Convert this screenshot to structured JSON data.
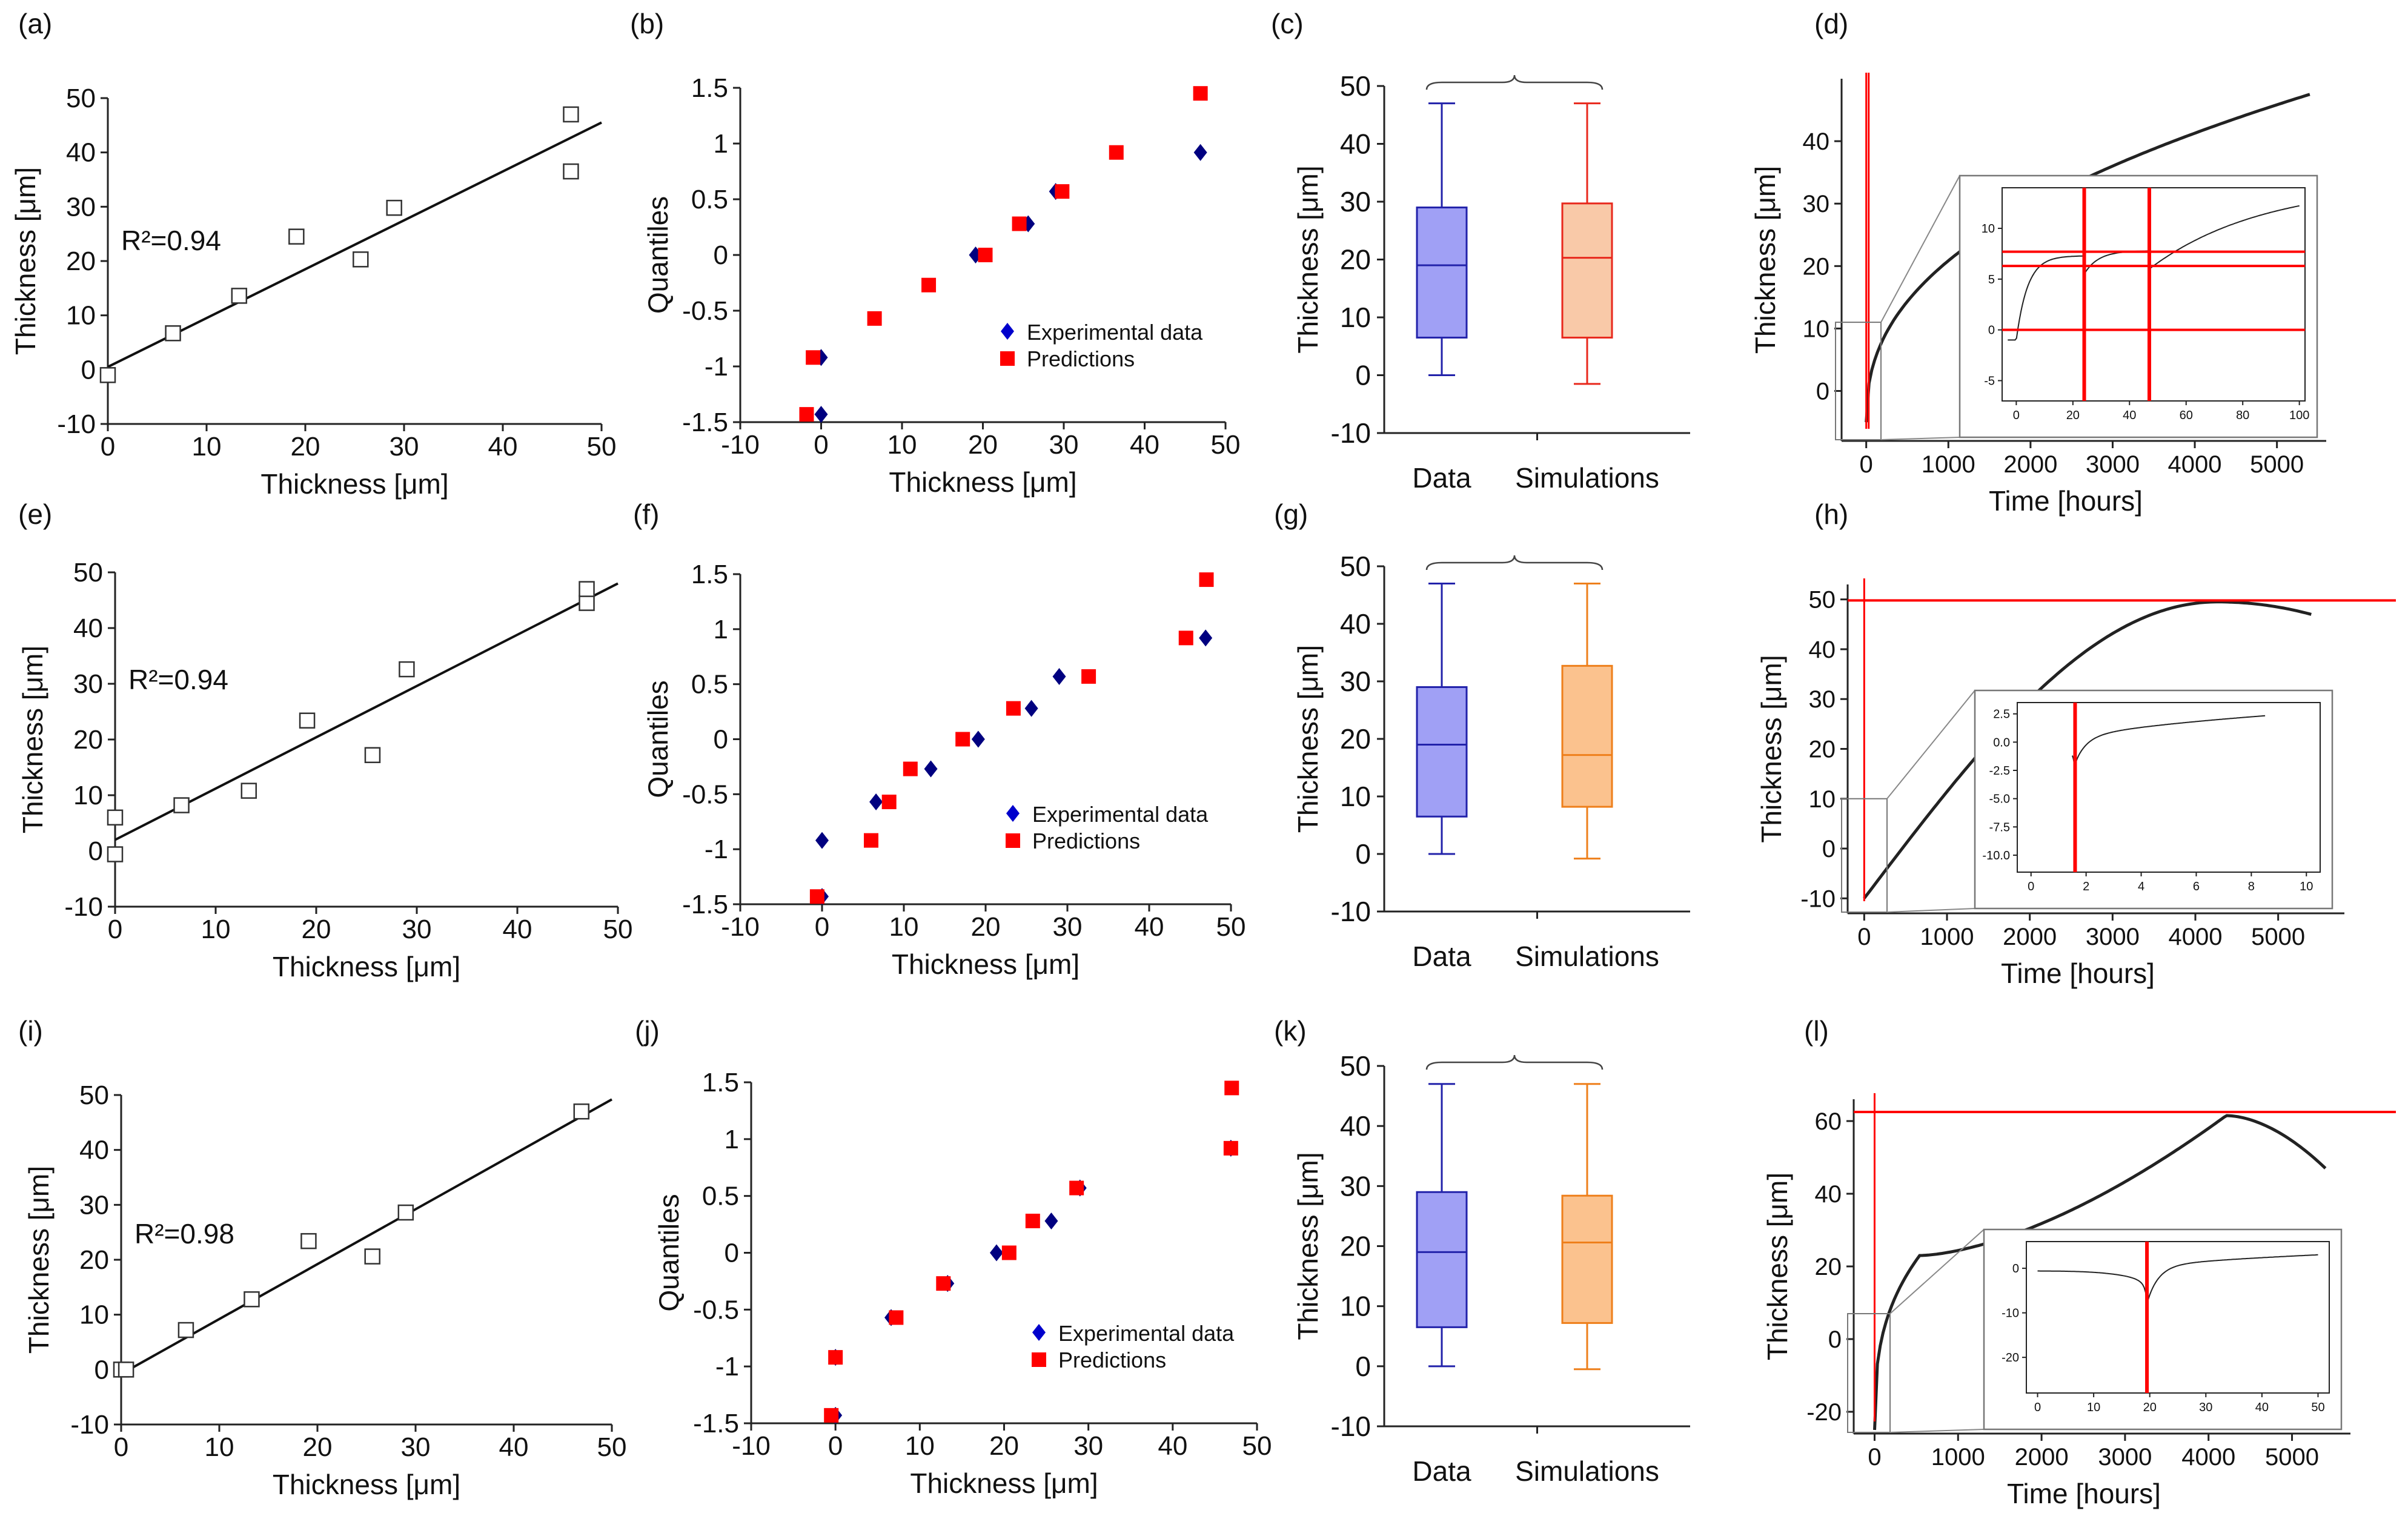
{
  "figure": {
    "colors": {
      "red": "#ff0000",
      "blue": "#0000cc",
      "navy": "#000080",
      "box_data_fill": "#a0a0f5",
      "box_data_edge": "#2222aa",
      "box_sim_fill_red": "#f9c9a8",
      "box_sim_edge_red": "#e8281c",
      "box_sim_fill_orange": "#fbc28e",
      "box_sim_edge_orange": "#ee7f1b",
      "curve": "#222222"
    }
  },
  "chart_data": [
    {
      "id": "a",
      "panel_label": "(a)",
      "type": "scatter",
      "xlabel": "Thickness [μm]",
      "ylabel": "Thickness [μm]",
      "xlim": [
        0,
        50
      ],
      "ylim": [
        -10,
        50
      ],
      "xticks": [
        "0",
        "10",
        "20",
        "30",
        "40",
        "50"
      ],
      "yticks": [
        "-10",
        "0",
        "10",
        "20",
        "30",
        "40",
        "50"
      ],
      "annotation": "R²=0.94",
      "fit_line": {
        "x": [
          0,
          50
        ],
        "y": [
          0.5,
          45.5
        ]
      },
      "points": {
        "x": [
          0,
          6.6,
          13.3,
          19.1,
          25.6,
          29,
          46.9,
          46.9
        ],
        "y": [
          -1,
          6.7,
          13.6,
          24.5,
          20.3,
          29.8,
          47,
          36.5
        ]
      }
    },
    {
      "id": "b",
      "panel_label": "(b)",
      "type": "scatter",
      "xlabel": "Thickness [μm]",
      "ylabel": "Quantiles",
      "xlim": [
        -10,
        50
      ],
      "ylim": [
        -1.5,
        1.5
      ],
      "xticks": [
        "-10",
        "0",
        "10",
        "20",
        "30",
        "40",
        "50"
      ],
      "yticks": [
        "-1.5",
        "-1",
        "-0.5",
        "0",
        "0.5",
        "1",
        "1.5"
      ],
      "legend": [
        "Experimental data",
        "Predictions"
      ],
      "legend_position": "lower-right",
      "series": [
        {
          "name": "Experimental data",
          "x": [
            0,
            0,
            19.1,
            25.6,
            29,
            46.9
          ],
          "y": [
            -1.43,
            -0.92,
            0,
            0.28,
            0.57,
            0.92
          ]
        },
        {
          "name": "Predictions",
          "x": [
            -1.8,
            -1,
            6.6,
            13.3,
            20.3,
            24.5,
            29.8,
            36.5,
            46.9
          ],
          "y": [
            -1.43,
            -0.92,
            -0.57,
            -0.27,
            0,
            0.28,
            0.57,
            0.92,
            1.45
          ]
        }
      ]
    },
    {
      "id": "c",
      "panel_label": "(c)",
      "type": "box",
      "ylabel": "Thickness [μm]",
      "ylim": [
        -10,
        50
      ],
      "yticks": [
        "-10",
        "0",
        "10",
        "20",
        "30",
        "40",
        "50"
      ],
      "categories": [
        "Data",
        "Simulations"
      ],
      "boxes": [
        {
          "min": 0,
          "q1": 6.5,
          "median": 19,
          "q3": 29,
          "max": 47
        },
        {
          "min": -1.5,
          "q1": 6.5,
          "median": 20.3,
          "q3": 29.7,
          "max": 47
        }
      ],
      "sim_color": "red"
    },
    {
      "id": "d",
      "panel_label": "(d)",
      "type": "line",
      "xlabel": "Time [hours]",
      "ylabel": "Thickness [μm]",
      "xlim": [
        -300,
        5600
      ],
      "ylim": [
        -8,
        50
      ],
      "xticks": [
        "0",
        "1000",
        "2000",
        "3000",
        "4000",
        "5000"
      ],
      "yticks": [
        "0",
        "10",
        "20",
        "30",
        "40"
      ],
      "curve_end": {
        "x": 5400,
        "y": 47.5
      },
      "vlines": [
        0,
        30
      ],
      "inset": {
        "xlim": [
          -5,
          102
        ],
        "ylim": [
          -7,
          14
        ],
        "xticks": [
          "0",
          "20",
          "40",
          "60",
          "80",
          "100"
        ],
        "yticks": [
          "-5",
          "0",
          "5",
          "10"
        ],
        "hlines": [
          0,
          6.3,
          7.7
        ],
        "vlines": [
          24,
          47
        ]
      }
    },
    {
      "id": "e",
      "panel_label": "(e)",
      "type": "scatter",
      "xlabel": "Thickness [μm]",
      "ylabel": "Thickness [μm]",
      "xlim": [
        0,
        50
      ],
      "ylim": [
        -10,
        50
      ],
      "xticks": [
        "0",
        "10",
        "20",
        "30",
        "40",
        "50"
      ],
      "yticks": [
        "-10",
        "0",
        "10",
        "20",
        "30",
        "40",
        "50"
      ],
      "annotation": "R²=0.94",
      "fit_line": {
        "x": [
          0,
          50
        ],
        "y": [
          2.0,
          48.0
        ]
      },
      "points": {
        "x": [
          0,
          0,
          6.6,
          13.3,
          19.1,
          25.6,
          29,
          46.9,
          46.9
        ],
        "y": [
          6,
          -0.6,
          8.2,
          10.8,
          23.4,
          17.2,
          32.6,
          44.5,
          47
        ]
      }
    },
    {
      "id": "f",
      "panel_label": "(f)",
      "type": "scatter",
      "xlabel": "Thickness [μm]",
      "ylabel": "Quantiles",
      "xlim": [
        -10,
        50
      ],
      "ylim": [
        -1.5,
        1.5
      ],
      "xticks": [
        "-10",
        "0",
        "10",
        "20",
        "30",
        "40",
        "50"
      ],
      "yticks": [
        "-1.5",
        "-1",
        "-0.5",
        "0",
        "0.5",
        "1",
        "1.5"
      ],
      "legend": [
        "Experimental data",
        "Predictions"
      ],
      "legend_position": "lower-right",
      "series": [
        {
          "name": "Experimental data",
          "x": [
            0,
            0,
            6.6,
            13.3,
            19.1,
            25.6,
            29,
            46.9
          ],
          "y": [
            -1.43,
            -0.92,
            -0.57,
            -0.27,
            0,
            0.28,
            0.57,
            0.92
          ]
        },
        {
          "name": "Predictions",
          "x": [
            -0.6,
            6,
            8.2,
            10.8,
            17.2,
            23.4,
            32.6,
            44.5,
            47
          ],
          "y": [
            -1.43,
            -0.92,
            -0.57,
            -0.27,
            0,
            0.28,
            0.57,
            0.92,
            1.45
          ]
        }
      ]
    },
    {
      "id": "g",
      "panel_label": "(g)",
      "type": "box",
      "ylabel": "Thickness [μm]",
      "ylim": [
        -10,
        50
      ],
      "yticks": [
        "-10",
        "0",
        "10",
        "20",
        "30",
        "40",
        "50"
      ],
      "categories": [
        "Data",
        "Simulations"
      ],
      "boxes": [
        {
          "min": 0,
          "q1": 6.5,
          "median": 19,
          "q3": 29,
          "max": 47
        },
        {
          "min": -0.8,
          "q1": 8.2,
          "median": 17.2,
          "q3": 32.7,
          "max": 47
        }
      ],
      "sim_color": "orange"
    },
    {
      "id": "h",
      "panel_label": "(h)",
      "type": "line",
      "xlabel": "Time [hours]",
      "ylabel": "Thickness [μm]",
      "xlim": [
        -200,
        5800
      ],
      "ylim": [
        -13,
        53
      ],
      "xticks": [
        "0",
        "1000",
        "2000",
        "3000",
        "4000",
        "5000"
      ],
      "yticks": [
        "-10",
        "0",
        "10",
        "20",
        "30",
        "40",
        "50"
      ],
      "curve_peak": {
        "x": 4250,
        "y": 49.5
      },
      "curve_end": {
        "x": 5400,
        "y": 47
      },
      "hline": 49.8,
      "vlines": [
        0
      ],
      "inset": {
        "xlim": [
          -0.5,
          10.5
        ],
        "ylim": [
          -11.5,
          3.5
        ],
        "xticks": [
          "0",
          "2",
          "4",
          "6",
          "8",
          "10"
        ],
        "yticks": [
          "2.5",
          "0.0",
          "-2.5",
          "-5.0",
          "-7.5",
          "-10.0"
        ],
        "vlines": [
          1.6
        ]
      }
    },
    {
      "id": "i",
      "panel_label": "(i)",
      "type": "scatter",
      "xlabel": "Thickness [μm]",
      "ylabel": "Thickness [μm]",
      "xlim": [
        0,
        50
      ],
      "ylim": [
        -10,
        50
      ],
      "xticks": [
        "0",
        "10",
        "20",
        "30",
        "40",
        "50"
      ],
      "yticks": [
        "-10",
        "0",
        "10",
        "20",
        "30",
        "40",
        "50"
      ],
      "annotation": "R²=0.98",
      "fit_line": {
        "x": [
          0,
          50
        ],
        "y": [
          -0.8,
          49.2
        ]
      },
      "points": {
        "x": [
          0,
          0.5,
          6.6,
          13.3,
          19.1,
          25.6,
          29,
          46.9
        ],
        "y": [
          0,
          0,
          7.2,
          12.8,
          23.4,
          20.6,
          28.6,
          47
        ]
      }
    },
    {
      "id": "j",
      "panel_label": "(j)",
      "type": "scatter",
      "xlabel": "Thickness [μm]",
      "ylabel": "Quantiles",
      "xlim": [
        -10,
        50
      ],
      "ylim": [
        -1.5,
        1.5
      ],
      "xticks": [
        "-10",
        "0",
        "10",
        "20",
        "30",
        "40",
        "50"
      ],
      "yticks": [
        "-1.5",
        "-1",
        "-0.5",
        "0",
        "0.5",
        "1",
        "1.5"
      ],
      "legend": [
        "Experimental data",
        "Predictions"
      ],
      "legend_position": "lower-right",
      "series": [
        {
          "name": "Experimental data",
          "x": [
            0,
            0,
            6.6,
            13.3,
            19.1,
            25.6,
            29,
            46.9
          ],
          "y": [
            -1.43,
            -0.92,
            -0.57,
            -0.27,
            0,
            0.28,
            0.57,
            0.92
          ]
        },
        {
          "name": "Predictions",
          "x": [
            -0.5,
            0,
            7.2,
            12.8,
            20.6,
            23.4,
            28.6,
            46.9,
            47
          ],
          "y": [
            -1.43,
            -0.92,
            -0.57,
            -0.27,
            0,
            0.28,
            0.57,
            0.92,
            1.45
          ]
        }
      ]
    },
    {
      "id": "k",
      "panel_label": "(k)",
      "type": "box",
      "ylabel": "Thickness [μm]",
      "ylim": [
        -10,
        50
      ],
      "yticks": [
        "-10",
        "0",
        "10",
        "20",
        "30",
        "40",
        "50"
      ],
      "categories": [
        "Data",
        "Simulations"
      ],
      "boxes": [
        {
          "min": 0,
          "q1": 6.5,
          "median": 19,
          "q3": 29,
          "max": 47
        },
        {
          "min": -0.5,
          "q1": 7.2,
          "median": 20.6,
          "q3": 28.4,
          "max": 47
        }
      ],
      "sim_color": "orange"
    },
    {
      "id": "l",
      "panel_label": "(l)",
      "type": "line",
      "xlabel": "Time [hours]",
      "ylabel": "Thickness [μm]",
      "xlim": [
        -250,
        5700
      ],
      "ylim": [
        -26,
        66
      ],
      "xticks": [
        "0",
        "1000",
        "2000",
        "3000",
        "4000",
        "5000"
      ],
      "yticks": [
        "-20",
        "0",
        "20",
        "40",
        "60"
      ],
      "curve_peak": {
        "x": 4200,
        "y": 61.5
      },
      "curve_end": {
        "x": 5400,
        "y": 47
      },
      "hline": 62.5,
      "vlines": [
        0
      ],
      "inset": {
        "xlim": [
          -2,
          52
        ],
        "ylim": [
          -28,
          6
        ],
        "xticks": [
          "0",
          "10",
          "20",
          "30",
          "40",
          "50"
        ],
        "yticks": [
          "0",
          "-10",
          "-20"
        ],
        "vlines": [
          19.5
        ]
      }
    }
  ]
}
